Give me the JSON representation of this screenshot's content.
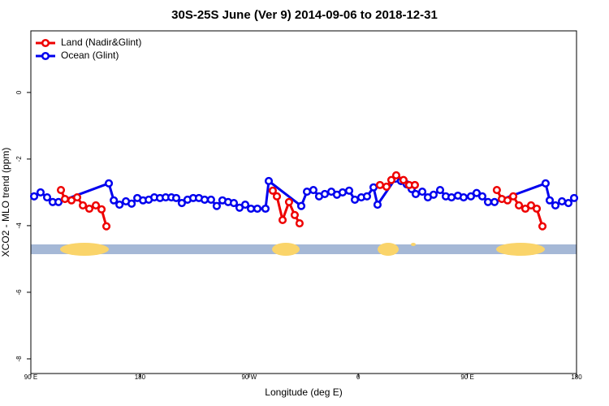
{
  "chart_data": {
    "type": "line",
    "title": "30S-25S June (Ver 9)   2014-09-06 to 2018-12-31",
    "x_label": "Longitude (deg E)",
    "y_label": "XCO2 - MLO trend (ppm)",
    "xlim": [
      90,
      540
    ],
    "ylim": [
      -8.44,
      1.85
    ],
    "xticks": [
      {
        "value": 90,
        "label": "90 E"
      },
      180,
      {
        "value": 270,
        "label": "90 W"
      },
      {
        "value": 360,
        "label": "0"
      },
      {
        "value": 450,
        "label": "90 E"
      },
      {
        "value": 540,
        "label": "180"
      }
    ],
    "yticks": [
      0,
      -2,
      -4,
      -6,
      -8
    ],
    "grid": false,
    "legend": "top-left",
    "series": [
      {
        "name": "Land (Nadir&Glint)",
        "color": "#ee0000",
        "x": [
          114.8,
          118.1,
          123.5,
          128.2,
          132.9,
          138.2,
          143.6,
          148.3,
          152.3,
          null,
          289.5,
          292.9,
          297.6,
          302.9,
          307.6,
          311.6,
          null,
          377.9,
          383.3,
          387.3,
          391.3,
          397.3,
          402.0,
          406.7,
          null,
          474.3,
          478.4,
          483.1,
          487.8,
          492.5,
          497.8,
          502.5,
          507.2,
          511.9
        ],
        "values": [
          -2.93,
          -3.2,
          -3.24,
          -3.15,
          -3.39,
          -3.49,
          -3.39,
          -3.51,
          -4.02,
          null,
          -2.95,
          -3.12,
          -3.83,
          -3.29,
          -3.68,
          -3.93,
          null,
          -2.78,
          -2.83,
          -2.63,
          -2.49,
          -2.63,
          -2.78,
          -2.78,
          null,
          -2.93,
          -3.2,
          -3.24,
          -3.12,
          -3.39,
          -3.49,
          -3.39,
          -3.49,
          -4.02
        ]
      },
      {
        "name": "Ocean (Glint)",
        "color": "#0000ee",
        "x": [
          92.7,
          98.0,
          103.4,
          108.0,
          112.8,
          154.3,
          158.4,
          163.1,
          168.4,
          173.1,
          177.8,
          182.5,
          187.2,
          191.8,
          196.5,
          201.2,
          205.9,
          209.9,
          214.5,
          219.2,
          223.9,
          228.6,
          233.3,
          238.6,
          243.3,
          248.0,
          252.7,
          257.4,
          262.1,
          266.8,
          271.5,
          276.8,
          283.5,
          286.2,
          313.0,
          317.7,
          323.0,
          327.7,
          332.4,
          337.8,
          342.4,
          347.1,
          352.5,
          357.2,
          362.5,
          367.2,
          372.6,
          375.9,
          390.6,
          395.3,
          400.0,
          404.0,
          407.4,
          412.8,
          417.4,
          422.1,
          427.5,
          432.2,
          436.9,
          442.2,
          446.9,
          452.9,
          457.6,
          462.3,
          467.0,
          472.4,
          514.5,
          517.9,
          522.6,
          528.0,
          533.3,
          538.0
        ],
        "values": [
          -3.12,
          -3.0,
          -3.15,
          -3.29,
          -3.29,
          -2.73,
          -3.24,
          -3.37,
          -3.27,
          -3.34,
          -3.17,
          -3.24,
          -3.22,
          -3.15,
          -3.17,
          -3.15,
          -3.15,
          -3.17,
          -3.32,
          -3.22,
          -3.17,
          -3.17,
          -3.22,
          -3.22,
          -3.41,
          -3.24,
          -3.29,
          -3.32,
          -3.46,
          -3.37,
          -3.49,
          -3.49,
          -3.49,
          -2.66,
          -3.41,
          -2.98,
          -2.93,
          -3.12,
          -3.05,
          -2.98,
          -3.07,
          -3.0,
          -2.95,
          -3.22,
          -3.15,
          -3.12,
          -2.85,
          -3.37,
          -2.59,
          -2.66,
          -2.76,
          -2.9,
          -3.05,
          -2.98,
          -3.15,
          -3.07,
          -2.93,
          -3.12,
          -3.15,
          -3.1,
          -3.15,
          -3.12,
          -3.02,
          -3.12,
          -3.29,
          -3.29,
          -2.73,
          -3.24,
          -3.39,
          -3.27,
          -3.32,
          -3.17
        ]
      }
    ]
  }
}
